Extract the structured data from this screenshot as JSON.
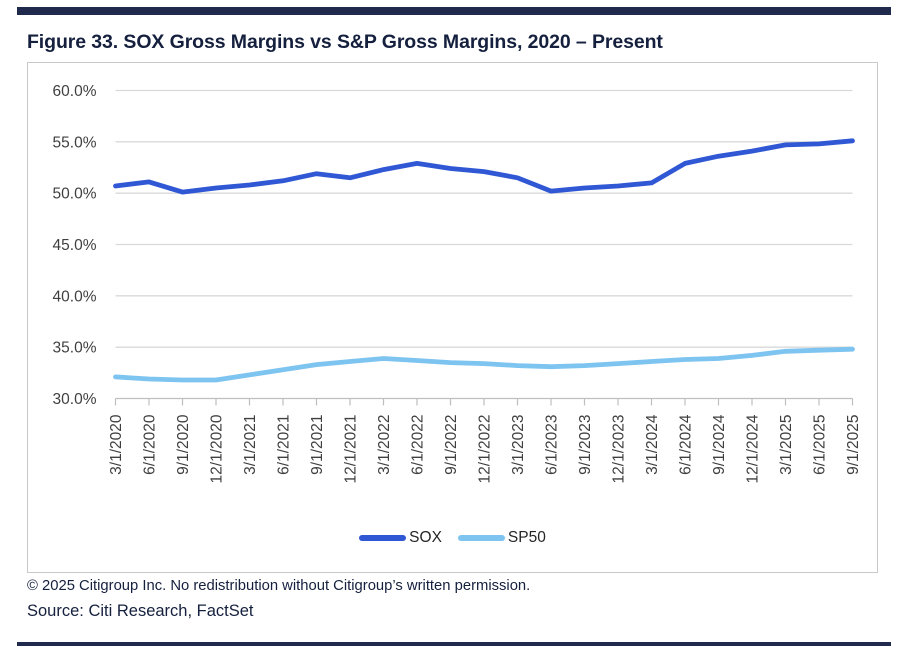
{
  "figure": {
    "title": "Figure 33. SOX Gross Margins vs S&P Gross Margins, 2020 – Present"
  },
  "chart_data": {
    "type": "line",
    "x": [
      "3/1/2020",
      "6/1/2020",
      "9/1/2020",
      "12/1/2020",
      "3/1/2021",
      "6/1/2021",
      "9/1/2021",
      "12/1/2021",
      "3/1/2022",
      "6/1/2022",
      "9/1/2022",
      "12/1/2022",
      "3/1/2023",
      "6/1/2023",
      "9/1/2023",
      "12/1/2023",
      "3/1/2024",
      "6/1/2024",
      "9/1/2024",
      "12/1/2024",
      "3/1/2025",
      "6/1/2025",
      "9/1/2025"
    ],
    "series": [
      {
        "name": "SOX",
        "color": "#3158D4",
        "values": [
          50.7,
          51.1,
          50.1,
          50.5,
          50.8,
          51.2,
          51.9,
          51.5,
          52.3,
          52.9,
          52.4,
          52.1,
          51.5,
          50.2,
          50.5,
          50.7,
          51.0,
          52.9,
          53.6,
          54.1,
          54.7,
          54.8,
          55.1
        ]
      },
      {
        "name": "SP50",
        "color": "#7EC4F0",
        "values": [
          32.1,
          31.9,
          31.8,
          31.8,
          32.3,
          32.8,
          33.3,
          33.6,
          33.9,
          33.7,
          33.5,
          33.4,
          33.2,
          33.1,
          33.2,
          33.4,
          33.6,
          33.8,
          33.9,
          34.2,
          34.6,
          34.7,
          34.8
        ]
      }
    ],
    "ylim": [
      30,
      60
    ],
    "yticks": [
      30,
      35,
      40,
      45,
      50,
      55,
      60
    ],
    "ytick_labels": [
      "30.0%",
      "35.0%",
      "40.0%",
      "45.0%",
      "50.0%",
      "55.0%",
      "60.0%"
    ],
    "grid": true,
    "legend_position": "bottom",
    "xlabel": "",
    "ylabel": ""
  },
  "footer": {
    "copyright": "© 2025 Citigroup Inc. No redistribution without Citigroup’s written permission.",
    "source": "Source: Citi Research, FactSet"
  },
  "colors": {
    "accent_bar": "#1F2A4C",
    "title_text": "#15203E",
    "grid_line": "#D9D9D9",
    "axis_line": "#BFBFBF",
    "tick_label": "#3F3F3F",
    "sox_line": "#3158D4",
    "sp50_line": "#7EC4F0"
  }
}
